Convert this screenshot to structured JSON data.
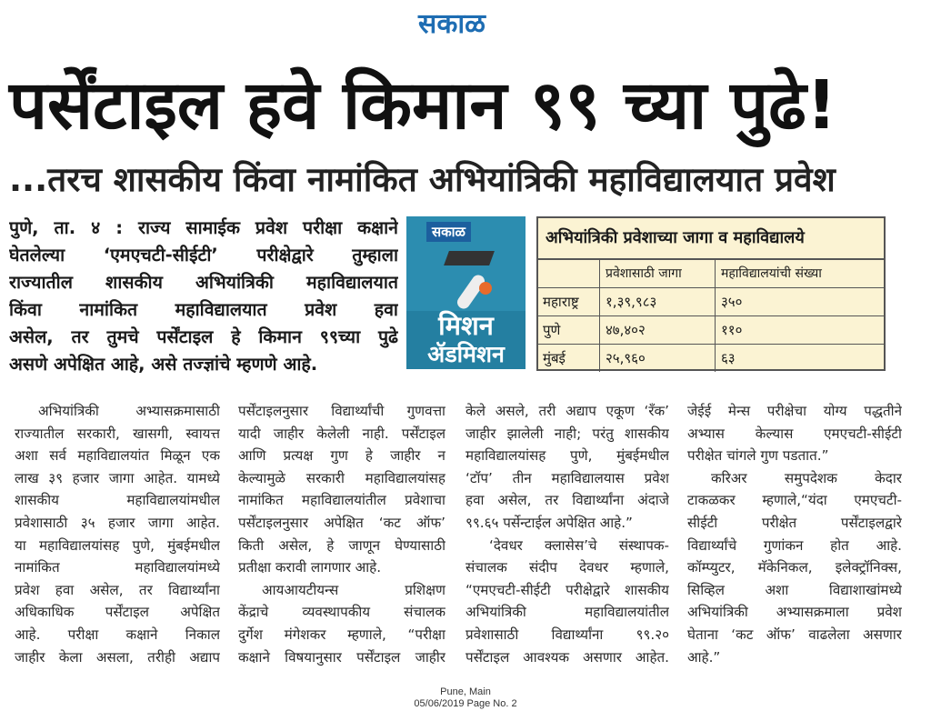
{
  "masthead": {
    "logo_text": "सकाळ",
    "logo_color": "#1e6db3"
  },
  "headline": "पर्सेंटाइल हवे किमान ९९ च्या पुढे!",
  "subheadline": "...तरच शासकीय किंवा नामांकित अभियांत्रिकी महाविद्यालयात प्रवेश",
  "lead_lines": [
    "पुणे, ता. ४ : राज्य सामाईक प्रवेश परीक्षा कक्षाने",
    "घेतलेल्या ‘एमएचटी-सीईटी’ परीक्षेद्वारे तुम्हाला",
    "राज्यातील शासकीय अभियांत्रिकी महाविद्यालयात",
    "किंवा नामांकित महाविद्यालयात प्रवेश हवा",
    "असेल, तर तुमचे पर्सेंटाइल हे किमान ९९च्या पुढे",
    "असणे अपेक्षित आहे, असे तज्ज्ञांचे म्हणणे आहे."
  ],
  "graphic": {
    "logo_text": "सकाळ",
    "line1": "मिशन",
    "line2": "ॲडमिशन",
    "color": "#2c8db0",
    "icon": "graduation-cap-diploma"
  },
  "table": {
    "title": "अभियांत्रिकी प्रवेशाच्या जागा व महाविद्यालये",
    "columns": [
      "",
      "प्रवेशासाठी जागा",
      "महाविद्यालयांची संख्या"
    ],
    "rows": [
      [
        "महाराष्ट्र",
        "१,३९,९८३",
        "३५०"
      ],
      [
        "पुणे",
        "४७,४०२",
        "११०"
      ],
      [
        "मुंबई",
        "२५,९६०",
        "६३"
      ]
    ]
  },
  "columns": [
    [
      {
        "indent": true,
        "last": false,
        "text": "अभियांत्रिकी अभ्यासक्रमासाठी"
      },
      {
        "text": "राज्यातील सरकारी, खासगी, स्वायत्त"
      },
      {
        "text": "अशा सर्व महाविद्यालयांत मिळून एक"
      },
      {
        "text": "लाख ३९ हजार जागा आहेत. यामध्ये"
      },
      {
        "text": "शासकीय महाविद्यालयांमधील"
      },
      {
        "text": "प्रवेशासाठी ३५ हजार जागा आहेत."
      },
      {
        "text": "या महाविद्यालयांसह पुणे, मुंबईमधील"
      },
      {
        "text": "नामांकित महाविद्यालयांमध्ये"
      },
      {
        "text": "प्रवेश हवा असेल, तर विद्यार्थ्यांना"
      },
      {
        "text": "अधिकाधिक पर्सेंटाइल अपेक्षित"
      },
      {
        "text": "आहे. परीक्षा कक्षाने निकाल"
      },
      {
        "text": "जाहीर केला असला, तरीही अद्याप"
      }
    ],
    [
      {
        "text": "पर्सेंटाइलनुसार विद्यार्थ्यांची गुणवत्ता"
      },
      {
        "text": "यादी जाहीर केलेली नाही. पर्सेंटाइल"
      },
      {
        "text": "आणि प्रत्यक्ष गुण हे जाहीर न"
      },
      {
        "text": "केल्यामुळे सरकारी महाविद्यालयांसह"
      },
      {
        "text": "नामांकित महाविद्यालयांतील प्रवेशाचा"
      },
      {
        "text": "पर्सेंटाइलनुसार अपेक्षित ‘कट ऑफ’"
      },
      {
        "text": "किती असेल, हे जाणून घेण्यासाठी"
      },
      {
        "last": true,
        "text": "प्रतीक्षा करावी लागणार आहे."
      },
      {
        "indent": true,
        "text": "आयआयटीयन्स प्रशिक्षण"
      },
      {
        "text": "केंद्राचे व्यवस्थापकीय संचालक"
      },
      {
        "text": "दुर्गेश मंगेशकर म्हणाले, “परीक्षा"
      },
      {
        "text": "कक्षाने विषयानुसार पर्सेंटाइल जाहीर"
      }
    ],
    [
      {
        "text": "केले असले, तरी अद्याप एकूण ‘रॅंक’"
      },
      {
        "text": "जाहीर झालेली नाही; परंतु शासकीय"
      },
      {
        "text": "महाविद्यालयांसह पुणे, मुंबईमधील"
      },
      {
        "text": "‘टॉप’ तीन महाविद्यालयास प्रवेश"
      },
      {
        "text": "हवा असेल, तर विद्यार्थ्यांना अंदाजे"
      },
      {
        "last": true,
        "text": "९९.६५ पर्सेन्टाईल अपेक्षित आहे.”"
      },
      {
        "indent": true,
        "text": "‘देवधर क्लासेस’चे संस्थापक-"
      },
      {
        "text": "संचालक संदीप देवधर म्हणाले,"
      },
      {
        "text": "“एमएचटी-सीईटी परीक्षेद्वारे शासकीय"
      },
      {
        "text": "अभियांत्रिकी महाविद्यालयांतील"
      },
      {
        "text": "प्रवेशासाठी विद्यार्थ्यांना ९९.२०"
      },
      {
        "text": "पर्सेंटाइल आवश्यक असणार आहेत."
      }
    ],
    [
      {
        "text": "जेईई मेन्स परीक्षेचा योग्य पद्धतीने"
      },
      {
        "text": "अभ्यास केल्यास एमएचटी-सीईटी"
      },
      {
        "last": true,
        "text": "परीक्षेत चांगले गुण पडतात.”"
      },
      {
        "indent": true,
        "text": "करिअर समुपदेशक केदार"
      },
      {
        "text": "टाकळकर म्हणाले,“यंदा एमएचटी-"
      },
      {
        "text": "सीईटी परीक्षेत पर्सेंटाइलद्वारे"
      },
      {
        "text": "विद्यार्थ्यांचे गुणांकन होत आहे."
      },
      {
        "text": "कॉम्प्युटर, मॅकेनिकल, इलेक्ट्रॉनिक्स,"
      },
      {
        "text": "सिव्हिल अशा विद्याशाखांमध्ये"
      },
      {
        "text": "अभियांत्रिकी अभ्यासक्रमाला प्रवेश"
      },
      {
        "text": "घेताना ‘कट ऑफ’ वाढलेला असणार"
      },
      {
        "last": true,
        "text": "आहे.”"
      }
    ]
  ],
  "footer": {
    "edition": "Pune, Main",
    "date_page": "05/06/2019 Page No. 2"
  }
}
